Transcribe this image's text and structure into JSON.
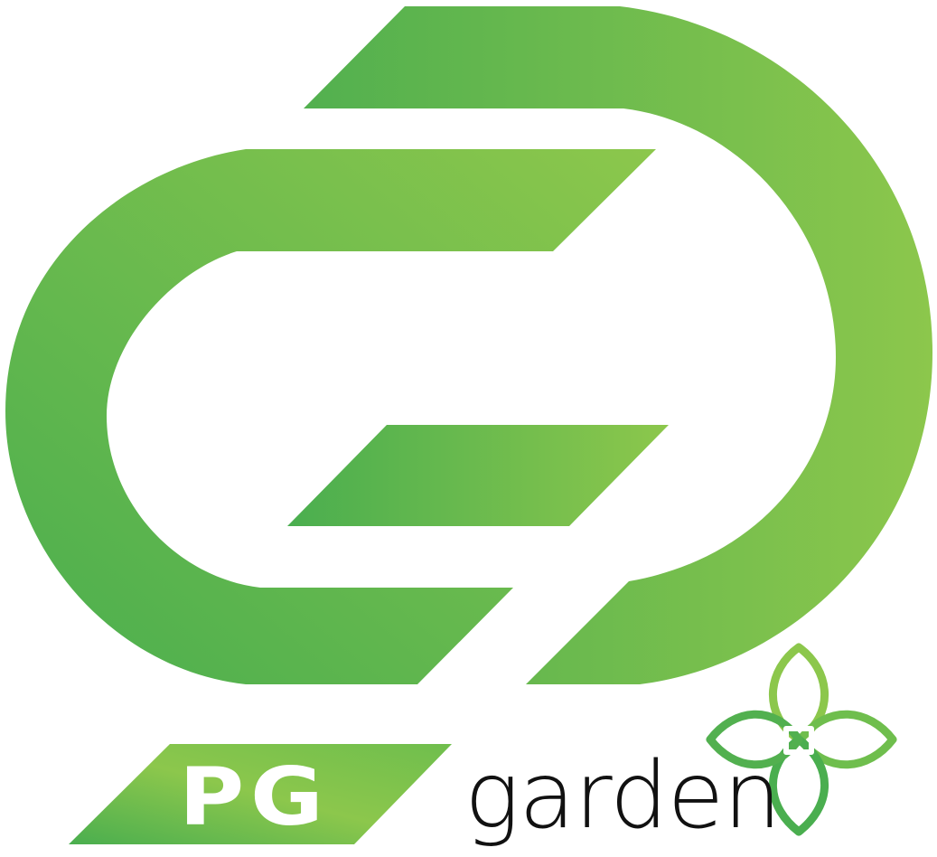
{
  "brand": {
    "monogram": "PG",
    "name": "garden"
  },
  "colors": {
    "green_dark": "#4AAE4F",
    "green_mid": "#63B64E",
    "green_light": "#8CC74C",
    "text_dark": "#111111",
    "white": "#FFFFFF"
  },
  "icons": {
    "emblem": "interlocking-g-d-emblem-icon",
    "flower": "four-petal-leaf-icon"
  }
}
